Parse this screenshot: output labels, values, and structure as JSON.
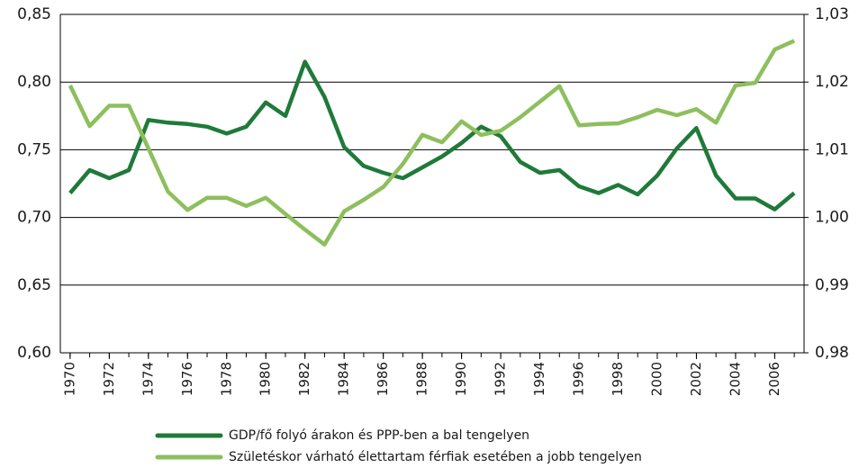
{
  "chart_data": {
    "type": "line",
    "x": [
      1970,
      1971,
      1972,
      1973,
      1974,
      1975,
      1976,
      1977,
      1978,
      1979,
      1980,
      1981,
      1982,
      1983,
      1984,
      1985,
      1986,
      1987,
      1988,
      1989,
      1990,
      1991,
      1992,
      1993,
      1994,
      1995,
      1996,
      1997,
      1998,
      1999,
      2000,
      2001,
      2002,
      2003,
      2004,
      2005,
      2006,
      2007
    ],
    "xlim": [
      1969.5,
      2007.5
    ],
    "xticks": [
      1970,
      1972,
      1974,
      1976,
      1978,
      1980,
      1982,
      1984,
      1986,
      1988,
      1990,
      1992,
      1994,
      1996,
      1998,
      2000,
      2002,
      2004,
      2006
    ],
    "ylim": [
      0.6,
      0.85
    ],
    "yticks": [
      {
        "value": 0.6,
        "label": "0,60"
      },
      {
        "value": 0.65,
        "label": "0,65"
      },
      {
        "value": 0.7,
        "label": "0,70"
      },
      {
        "value": 0.75,
        "label": "0,75"
      },
      {
        "value": 0.8,
        "label": "0,80"
      },
      {
        "value": 0.85,
        "label": "0,85"
      }
    ],
    "y2lim": [
      0.98,
      1.03
    ],
    "y2ticks": [
      {
        "value": 0.98,
        "label": "0,98"
      },
      {
        "value": 0.99,
        "label": "0,99"
      },
      {
        "value": 1.0,
        "label": "1,00"
      },
      {
        "value": 1.01,
        "label": "1,01"
      },
      {
        "value": 1.02,
        "label": "1,02"
      },
      {
        "value": 1.03,
        "label": "1,03"
      }
    ],
    "grid": true,
    "legend": "bottom",
    "series": [
      {
        "name": "GDP/fő folyó árakon és PPP-ben a bal tengelyen",
        "color": "#1f7a3a",
        "values": [
          0.718,
          0.735,
          0.729,
          0.735,
          0.772,
          0.77,
          0.769,
          0.767,
          0.762,
          0.767,
          0.785,
          0.775,
          0.815,
          0.789,
          0.752,
          0.738,
          0.733,
          0.729,
          0.737,
          0.745,
          0.755,
          0.767,
          0.76,
          0.741,
          0.733,
          0.735,
          0.723,
          0.718,
          0.724,
          0.717,
          0.731,
          0.751,
          0.766,
          0.731,
          0.714,
          0.714,
          0.706,
          0.718
        ]
      },
      {
        "name": "Születéskor várható élettartam férfiak esetében a jobb tengelyen",
        "color": "#8dbf5e",
        "axis": "y2",
        "values": [
          1.0195,
          1.0135,
          1.0165,
          1.0165,
          1.0102,
          1.0038,
          1.0011,
          1.0029,
          1.0029,
          1.0017,
          1.0029,
          1.0005,
          0.9982,
          0.996,
          1.0009,
          1.0026,
          1.0045,
          1.0079,
          1.0122,
          1.0111,
          1.0142,
          1.0122,
          1.0128,
          1.0148,
          1.0171,
          1.0194,
          1.0136,
          1.0138,
          1.0139,
          1.0148,
          1.0159,
          1.0151,
          1.016,
          1.014,
          1.0195,
          1.0199,
          1.0248,
          1.0261
        ]
      }
    ]
  }
}
